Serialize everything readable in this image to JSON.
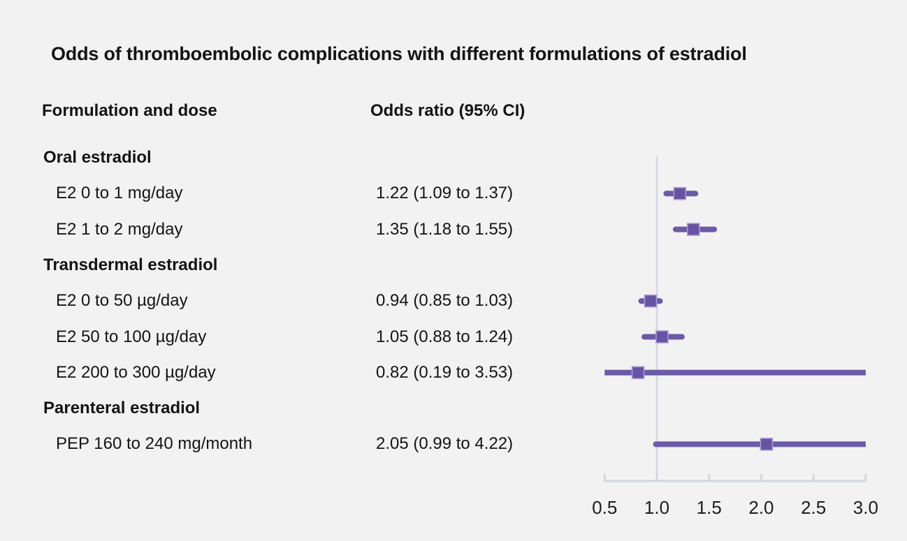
{
  "title": "Odds of thromboembolic complications with different formulations of estradiol",
  "columns": {
    "formulation": "Formulation and dose",
    "odds_ratio": "Odds ratio (95% CI)"
  },
  "colors": {
    "background": "#f2f2f2",
    "text": "#141414",
    "ci_line": "#6b5ba6",
    "marker_fill": "#6852a2",
    "marker_border": "#a79bd4",
    "reference_line": "#d6d9e2",
    "axis_line": "#d2d6df"
  },
  "chart_data": {
    "type": "forest",
    "title": "Odds of thromboembolic complications with different formulations of estradiol",
    "xlabel": "Odds ratio (95% CI)",
    "axis": {
      "scale": "linear",
      "min": 0.5,
      "max": 3.0,
      "ticks": [
        0.5,
        1.0,
        1.5,
        2.0,
        2.5,
        3.0
      ],
      "tick_labels": [
        "0.5",
        "1.0",
        "1.5",
        "2.0",
        "2.5",
        "3.0"
      ],
      "reference_line": 1.0,
      "grid": false
    },
    "rows": [
      {
        "kind": "group",
        "label": "Oral estradiol"
      },
      {
        "kind": "item",
        "label": "E2 0 to 1 mg/day",
        "or_text": "1.22 (1.09 to 1.37)",
        "or": 1.22,
        "ci_low": 1.09,
        "ci_high": 1.37
      },
      {
        "kind": "item",
        "label": "E2 1 to 2 mg/day",
        "or_text": "1.35 (1.18 to 1.55)",
        "or": 1.35,
        "ci_low": 1.18,
        "ci_high": 1.55
      },
      {
        "kind": "group",
        "label": "Transdermal estradiol"
      },
      {
        "kind": "item",
        "label": "E2 0 to 50 µg/day",
        "or_text": "0.94 (0.85 to 1.03)",
        "or": 0.94,
        "ci_low": 0.85,
        "ci_high": 1.03
      },
      {
        "kind": "item",
        "label": "E2 50 to 100 µg/day",
        "or_text": "1.05 (0.88 to 1.24)",
        "or": 1.05,
        "ci_low": 0.88,
        "ci_high": 1.24
      },
      {
        "kind": "item",
        "label": "E2 200 to 300 µg/day",
        "or_text": "0.82 (0.19 to 3.53)",
        "or": 0.82,
        "ci_low": 0.19,
        "ci_high": 3.53
      },
      {
        "kind": "group",
        "label": "Parenteral estradiol"
      },
      {
        "kind": "item",
        "label": "PEP 160 to 240 mg/month",
        "or_text": "2.05 (0.99 to 4.22)",
        "or": 2.05,
        "ci_low": 0.99,
        "ci_high": 4.22
      }
    ]
  }
}
